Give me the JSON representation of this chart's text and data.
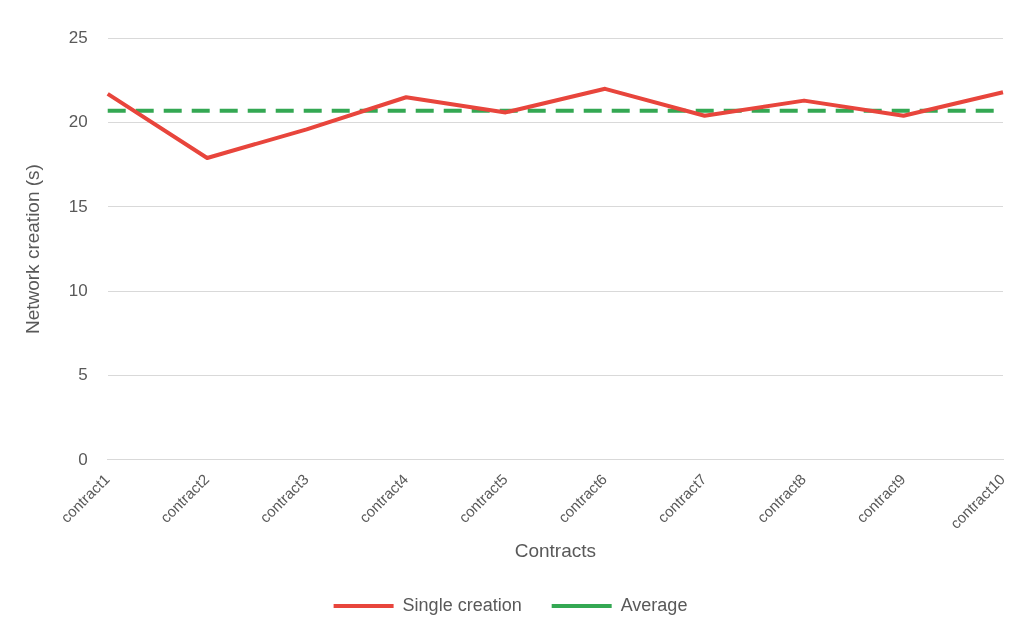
{
  "chart_data": {
    "type": "line",
    "xlabel": "Contracts",
    "ylabel": "Network creation (s)",
    "categories": [
      "contract1",
      "contract2",
      "contract3",
      "contract4",
      "contract5",
      "contract6",
      "contract7",
      "contract8",
      "contract9",
      "contract10"
    ],
    "series": [
      {
        "name": "Single creation",
        "color": "#e8453c",
        "line_style": "solid",
        "values": [
          21.7,
          17.9,
          19.6,
          21.5,
          20.6,
          22.0,
          20.4,
          21.3,
          20.4,
          21.8
        ]
      },
      {
        "name": "Average",
        "color": "#34a853",
        "line_style": "dashed",
        "values": [
          20.7,
          20.7,
          20.7,
          20.7,
          20.7,
          20.7,
          20.7,
          20.7,
          20.7,
          20.7
        ]
      }
    ],
    "ylim": [
      0,
      25
    ],
    "yticks": [
      0,
      5,
      10,
      15,
      20,
      25
    ],
    "grid": "y",
    "legend": "bottom",
    "marker": "none"
  }
}
